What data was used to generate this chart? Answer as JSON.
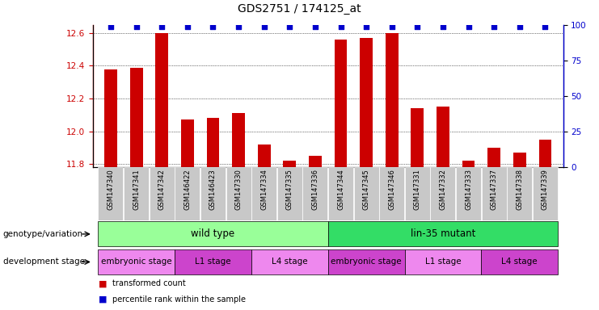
{
  "title": "GDS2751 / 174125_at",
  "samples": [
    "GSM147340",
    "GSM147341",
    "GSM147342",
    "GSM146422",
    "GSM146423",
    "GSM147330",
    "GSM147334",
    "GSM147335",
    "GSM147336",
    "GSM147344",
    "GSM147345",
    "GSM147346",
    "GSM147331",
    "GSM147332",
    "GSM147333",
    "GSM147337",
    "GSM147338",
    "GSM147339"
  ],
  "transformed_count": [
    12.38,
    12.39,
    12.6,
    12.07,
    12.08,
    12.11,
    11.92,
    11.82,
    11.85,
    12.56,
    12.57,
    12.6,
    12.14,
    12.15,
    11.82,
    11.9,
    11.87,
    11.95
  ],
  "ylim_left": [
    11.78,
    12.65
  ],
  "ylim_right": [
    0,
    100
  ],
  "yticks_left": [
    11.8,
    12.0,
    12.2,
    12.4,
    12.6
  ],
  "yticks_right": [
    0,
    25,
    50,
    75,
    100
  ],
  "bar_color": "#cc0000",
  "dot_color": "#0000cc",
  "bar_width": 0.5,
  "genotype_groups": [
    {
      "label": "wild type",
      "start": 0,
      "end": 9,
      "color": "#99ff99"
    },
    {
      "label": "lin-35 mutant",
      "start": 9,
      "end": 18,
      "color": "#33dd66"
    }
  ],
  "stage_groups": [
    {
      "label": "embryonic stage",
      "start": 0,
      "end": 3,
      "color": "#ee88ee"
    },
    {
      "label": "L1 stage",
      "start": 3,
      "end": 6,
      "color": "#cc44cc"
    },
    {
      "label": "L4 stage",
      "start": 6,
      "end": 9,
      "color": "#ee88ee"
    },
    {
      "label": "embryonic stage",
      "start": 9,
      "end": 12,
      "color": "#cc44cc"
    },
    {
      "label": "L1 stage",
      "start": 12,
      "end": 15,
      "color": "#ee88ee"
    },
    {
      "label": "L4 stage",
      "start": 15,
      "end": 18,
      "color": "#cc44cc"
    }
  ],
  "genotype_label": "genotype/variation",
  "stage_label": "development stage",
  "panel_bg": "#ffffff",
  "tick_bg": "#c8c8c8"
}
